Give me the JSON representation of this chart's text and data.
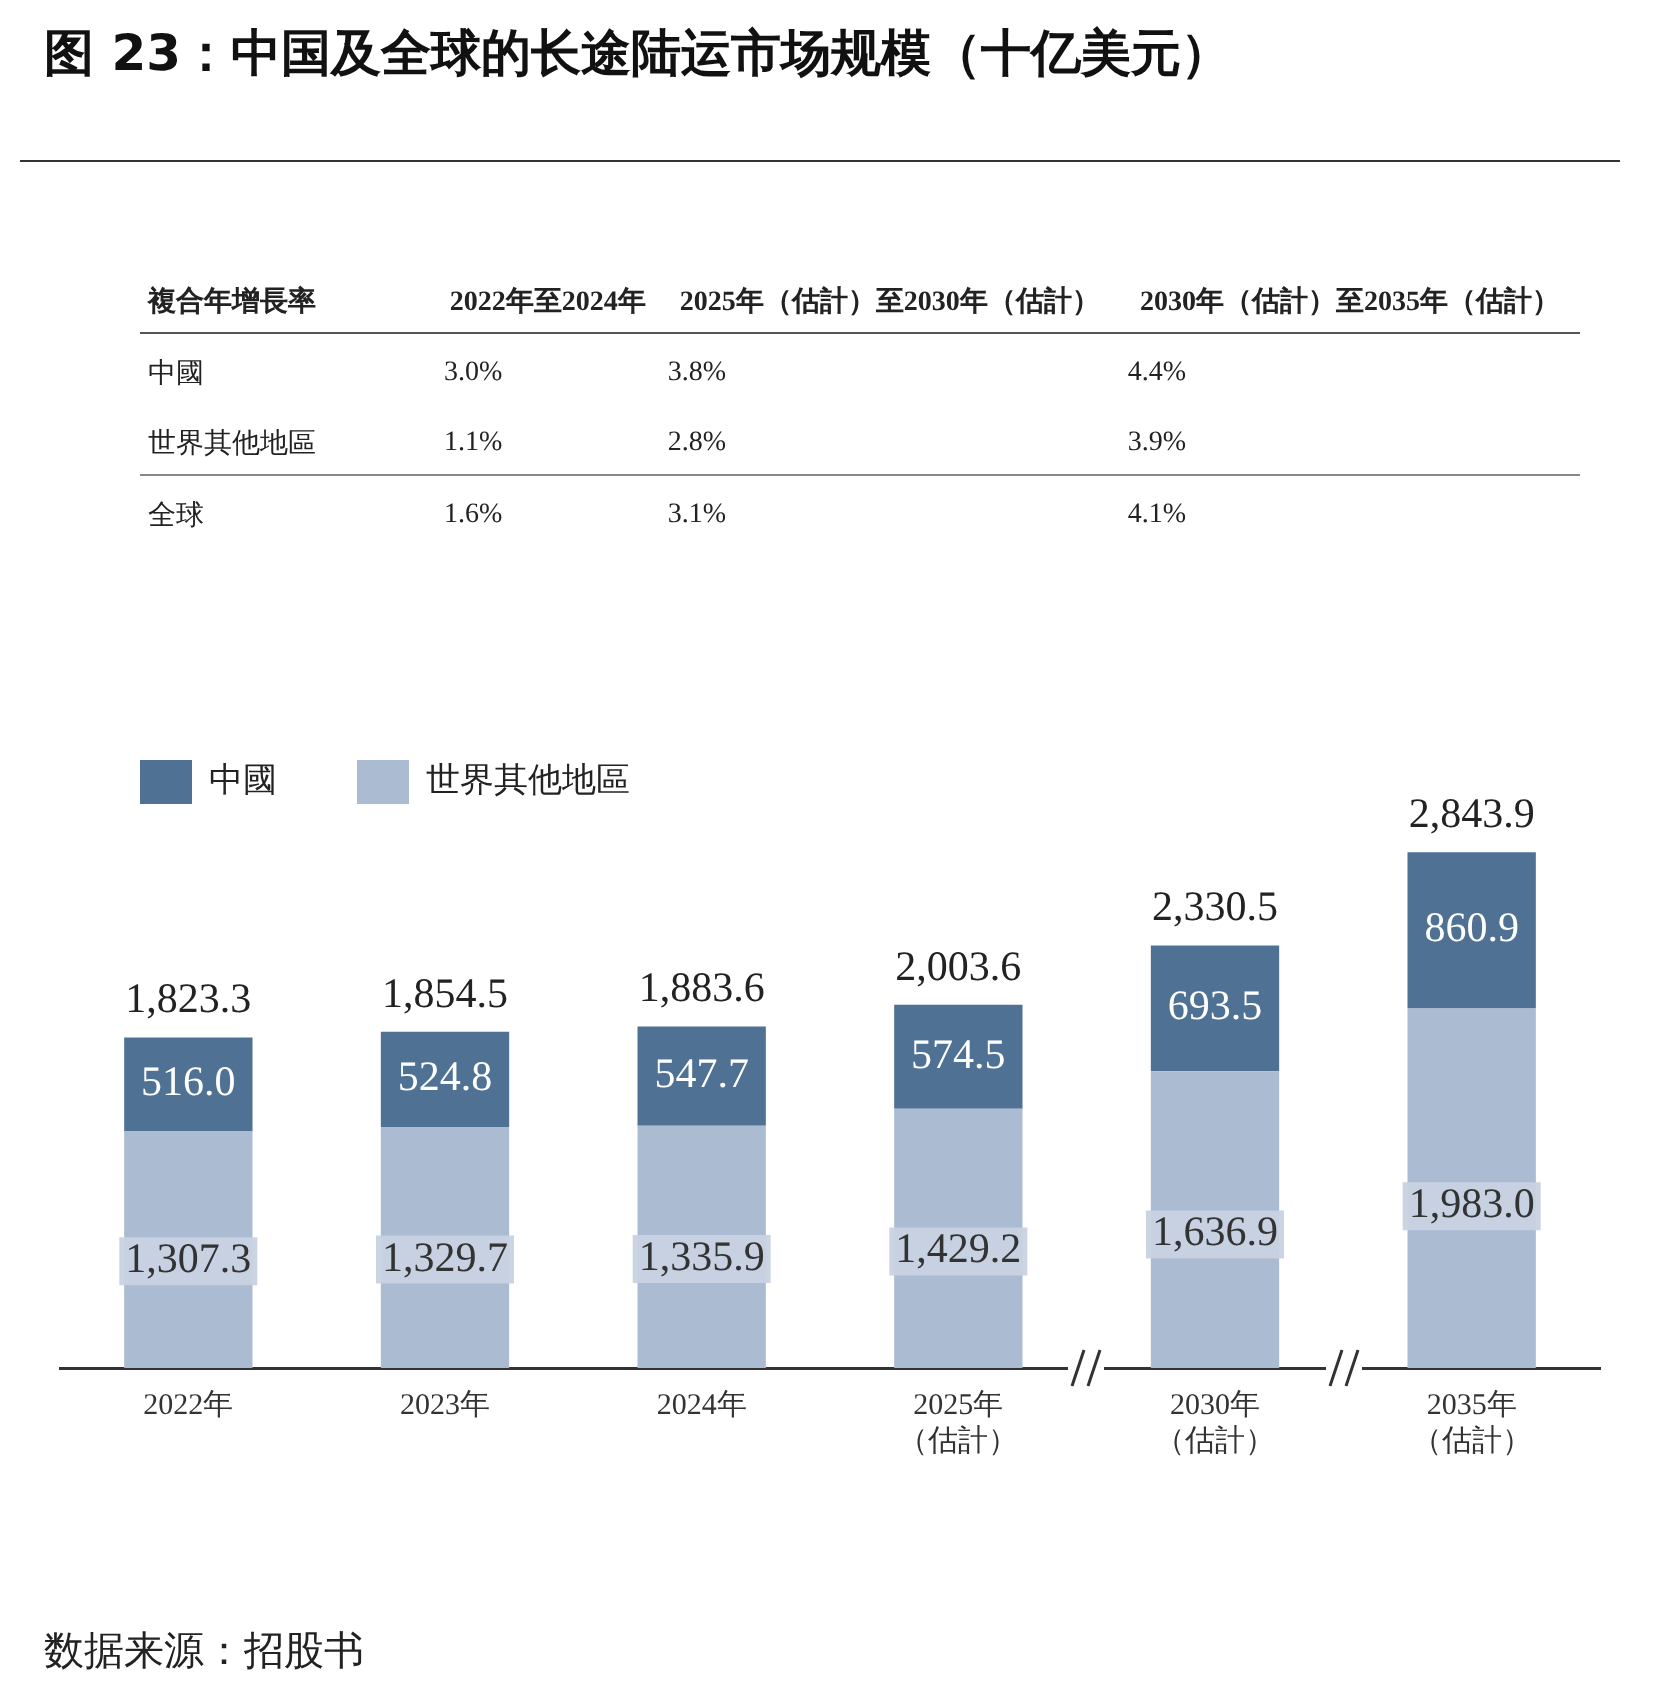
{
  "chart_data": [
    {
      "type": "other",
      "title": "图 23：中国及全球的长途陆运市场规模（十亿美元）",
      "annotations": [
        "複合年增長率",
        "2022年至2024年",
        "2025年（估計）至2030年（估計）",
        "2030年（估計）至2035年（估計）",
        "中國",
        "3.0%",
        "3.8%",
        "4.4%",
        "世界其他地區",
        "1.1%",
        "2.8%",
        "3.9%",
        "全球",
        "1.6%",
        "3.1%",
        "4.1%"
      ]
    },
    {
      "type": "bar",
      "stacked": true,
      "legend": "top left",
      "tick_labels": "x",
      "categories": [
        "2022年",
        "2023年",
        "2024年",
        "2025年（估計）",
        "2030年（估計）",
        "2035年（估計）"
      ],
      "series": [
        {
          "name": "世界其他地區",
          "color": "#abbbd1",
          "values": [
            1307.3,
            1329.7,
            1335.9,
            1429.2,
            1636.9,
            1983.0
          ],
          "value_labels": [
            "1,307.3",
            "1,329.7",
            "1,335.9",
            "1,429.2",
            "1,636.9",
            "1,983.0"
          ]
        },
        {
          "name": "中國",
          "color": "#4f7194",
          "values": [
            516.0,
            524.8,
            547.7,
            574.5,
            693.5,
            860.9
          ],
          "value_labels": [
            "516.0",
            "524.8",
            "547.7",
            "574.5",
            "693.5",
            "860.9"
          ]
        }
      ],
      "totals": [
        "1,823.3",
        "1,854.5",
        "1,883.6",
        "2,003.6",
        "2,330.5",
        "2,843.9"
      ],
      "annotations": [
        "数据来源：招股书"
      ]
    }
  ]
}
